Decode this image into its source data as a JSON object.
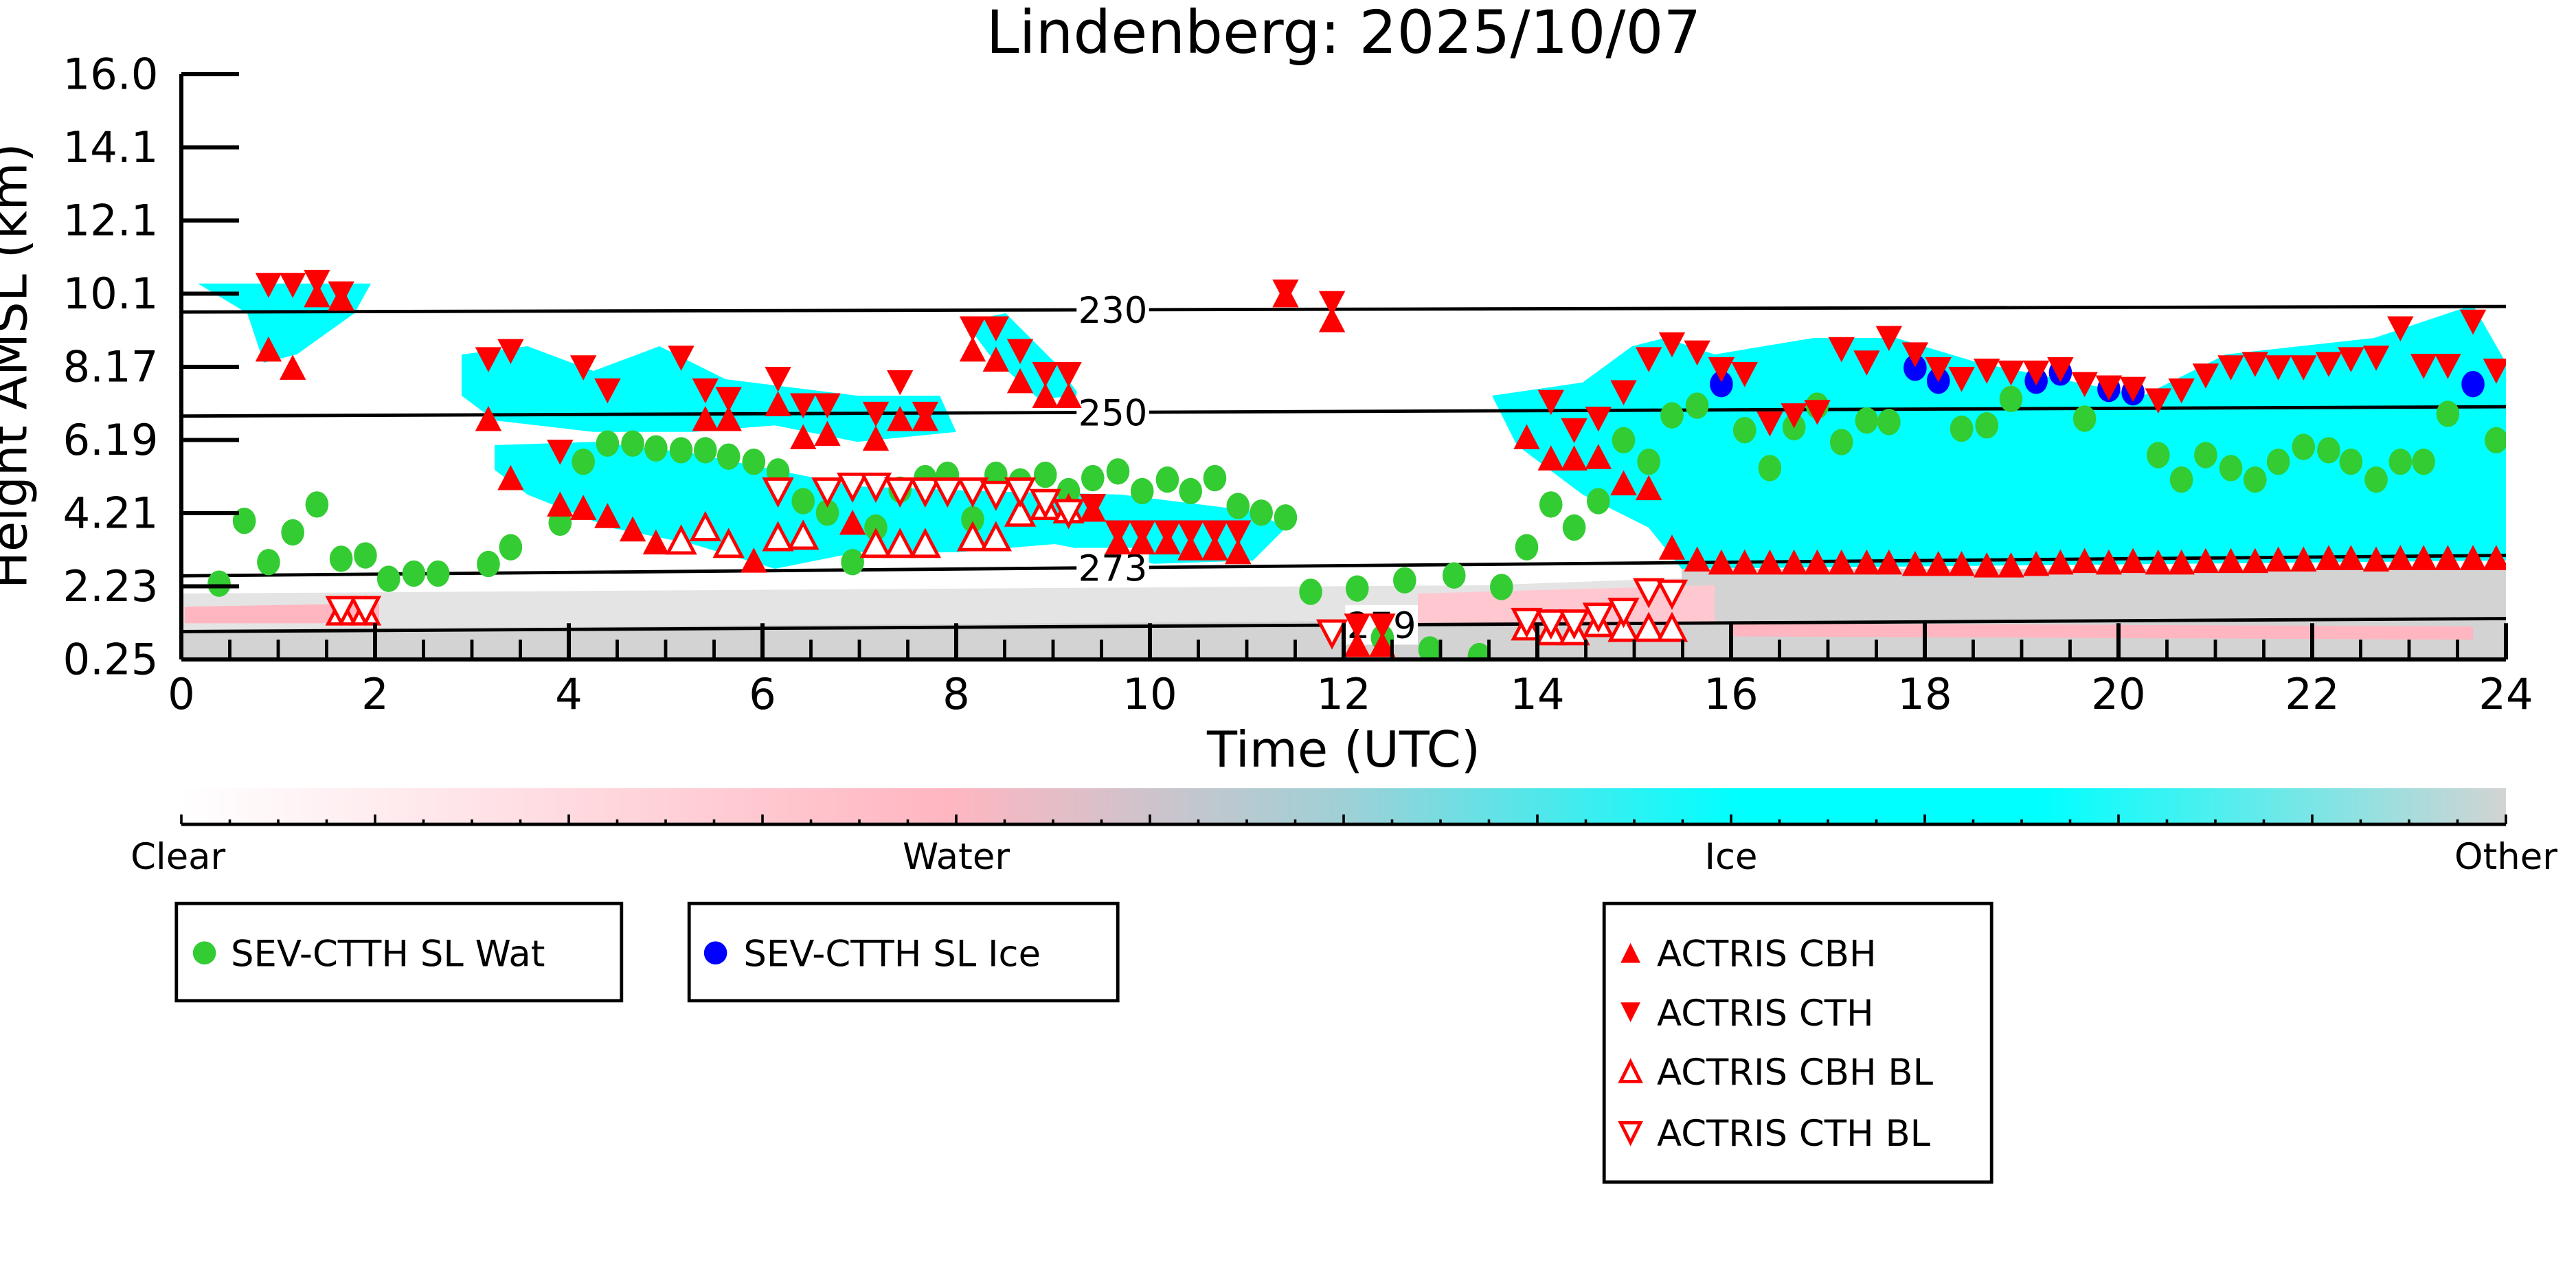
{
  "chart_data": {
    "type": "scatter",
    "title": "Lindenberg: 2025/10/07",
    "xlabel": "Time (UTC)",
    "ylabel": "Height AMSL (km)",
    "xlim": [
      0,
      24
    ],
    "ylim": [
      0.25,
      16.0
    ],
    "xticks": [
      "0",
      "2",
      "4",
      "6",
      "8",
      "10",
      "12",
      "14",
      "16",
      "18",
      "20",
      "22",
      "24"
    ],
    "yticks": [
      "0.25",
      "2.23",
      "4.21",
      "6.19",
      "8.17",
      "10.1",
      "12.1",
      "14.1",
      "16.0"
    ],
    "isotherms": [
      {
        "label": "230",
        "h_left": 9.6,
        "h_right": 9.75
      },
      {
        "label": "250",
        "h_left": 6.8,
        "h_right": 7.05
      },
      {
        "label": "273",
        "h_left": 2.5,
        "h_right": 3.05
      },
      {
        "label": "279",
        "h_left": 1.0,
        "h_right": 1.35
      }
    ],
    "colorbar": {
      "labels": [
        "Clear",
        "Water",
        "Ice",
        "Other"
      ],
      "colors": [
        "#ffffff",
        "#ffb6c1",
        "#00ffff",
        "#d3d3d3"
      ]
    },
    "series": [
      {
        "name": "SEV-CTTH SL Wat",
        "marker": "circle",
        "color": "#33cc33",
        "points": [
          [
            0.39,
            2.29
          ],
          [
            0.65,
            3.98
          ],
          [
            0.9,
            2.87
          ],
          [
            1.15,
            3.67
          ],
          [
            1.4,
            4.42
          ],
          [
            1.65,
            2.96
          ],
          [
            1.9,
            3.05
          ],
          [
            2.14,
            2.42
          ],
          [
            2.4,
            2.56
          ],
          [
            2.65,
            2.56
          ],
          [
            3.17,
            2.82
          ],
          [
            3.4,
            3.27
          ],
          [
            3.91,
            3.93
          ],
          [
            4.15,
            5.57
          ],
          [
            4.4,
            6.06
          ],
          [
            4.66,
            6.06
          ],
          [
            4.9,
            5.93
          ],
          [
            5.16,
            5.88
          ],
          [
            5.41,
            5.88
          ],
          [
            5.65,
            5.71
          ],
          [
            5.91,
            5.57
          ],
          [
            6.16,
            5.31
          ],
          [
            6.42,
            4.51
          ],
          [
            6.67,
            4.2
          ],
          [
            6.93,
            2.87
          ],
          [
            7.17,
            3.8
          ],
          [
            7.42,
            4.82
          ],
          [
            7.68,
            5.13
          ],
          [
            7.91,
            5.22
          ],
          [
            8.17,
            4.02
          ],
          [
            8.41,
            5.22
          ],
          [
            8.66,
            5.04
          ],
          [
            8.92,
            5.22
          ],
          [
            9.16,
            4.78
          ],
          [
            9.41,
            5.13
          ],
          [
            9.67,
            5.31
          ],
          [
            9.92,
            4.78
          ],
          [
            10.18,
            5.09
          ],
          [
            10.42,
            4.78
          ],
          [
            10.67,
            5.13
          ],
          [
            10.91,
            4.38
          ],
          [
            11.15,
            4.2
          ],
          [
            11.4,
            4.07
          ],
          [
            11.66,
            2.07
          ],
          [
            12.14,
            2.16
          ],
          [
            12.4,
            0.83
          ],
          [
            12.63,
            2.38
          ],
          [
            12.89,
            0.52
          ],
          [
            13.14,
            2.51
          ],
          [
            13.4,
            0.34
          ],
          [
            13.63,
            2.2
          ],
          [
            13.89,
            3.27
          ],
          [
            14.14,
            4.42
          ],
          [
            14.38,
            3.8
          ],
          [
            14.63,
            4.51
          ],
          [
            14.89,
            6.15
          ],
          [
            15.15,
            5.57
          ],
          [
            15.39,
            6.82
          ],
          [
            15.65,
            7.08
          ],
          [
            16.14,
            6.42
          ],
          [
            16.4,
            5.4
          ],
          [
            16.65,
            6.5
          ],
          [
            16.89,
            7.08
          ],
          [
            17.14,
            6.1
          ],
          [
            17.4,
            6.68
          ],
          [
            17.63,
            6.64
          ],
          [
            18.38,
            6.46
          ],
          [
            18.64,
            6.55
          ],
          [
            18.89,
            7.26
          ],
          [
            19.65,
            6.73
          ],
          [
            20.41,
            5.75
          ],
          [
            20.65,
            5.09
          ],
          [
            20.9,
            5.75
          ],
          [
            21.16,
            5.4
          ],
          [
            21.41,
            5.09
          ],
          [
            21.65,
            5.57
          ],
          [
            21.91,
            5.97
          ],
          [
            22.17,
            5.88
          ],
          [
            22.4,
            5.57
          ],
          [
            22.66,
            5.09
          ],
          [
            22.91,
            5.57
          ],
          [
            23.15,
            5.57
          ],
          [
            23.4,
            6.86
          ],
          [
            23.9,
            6.15
          ]
        ]
      },
      {
        "name": "SEV-CTTH SL Ice",
        "marker": "circle",
        "color": "#0000ff",
        "points": [
          [
            15.9,
            7.66
          ],
          [
            17.9,
            8.1
          ],
          [
            18.14,
            7.75
          ],
          [
            19.15,
            7.75
          ],
          [
            19.4,
            7.97
          ],
          [
            19.9,
            7.53
          ],
          [
            20.15,
            7.44
          ],
          [
            23.66,
            7.66
          ]
        ]
      },
      {
        "name": "ACTRIS CBH",
        "marker": "triangle-up",
        "color": "#ff0000",
        "points": [
          [
            0.9,
            8.55
          ],
          [
            1.15,
            8.06
          ],
          [
            1.4,
            10.01
          ],
          [
            1.65,
            9.92
          ],
          [
            3.17,
            6.68
          ],
          [
            3.4,
            5.09
          ],
          [
            3.91,
            4.38
          ],
          [
            4.15,
            4.29
          ],
          [
            4.4,
            4.07
          ],
          [
            4.66,
            3.71
          ],
          [
            4.9,
            3.36
          ],
          [
            5.41,
            6.68
          ],
          [
            5.65,
            6.68
          ],
          [
            5.91,
            2.87
          ],
          [
            6.16,
            7.08
          ],
          [
            6.42,
            6.19
          ],
          [
            6.67,
            6.28
          ],
          [
            6.93,
            3.89
          ],
          [
            7.17,
            6.15
          ],
          [
            7.42,
            6.68
          ],
          [
            7.68,
            6.68
          ],
          [
            8.17,
            8.55
          ],
          [
            8.41,
            8.28
          ],
          [
            8.66,
            7.7
          ],
          [
            8.92,
            7.3
          ],
          [
            9.16,
            7.3
          ],
          [
            9.41,
            4.24
          ],
          [
            9.67,
            3.36
          ],
          [
            9.92,
            3.36
          ],
          [
            10.18,
            3.36
          ],
          [
            10.42,
            3.2
          ],
          [
            10.67,
            3.2
          ],
          [
            10.91,
            3.1
          ],
          [
            11.4,
            10.01
          ],
          [
            11.88,
            9.34
          ],
          [
            12.14,
            0.6
          ],
          [
            12.4,
            0.6
          ],
          [
            13.89,
            6.19
          ],
          [
            14.14,
            5.62
          ],
          [
            14.38,
            5.62
          ],
          [
            14.63,
            5.66
          ],
          [
            14.89,
            4.95
          ],
          [
            15.15,
            4.82
          ],
          [
            15.39,
            3.22
          ],
          [
            15.65,
            2.9
          ],
          [
            15.9,
            2.82
          ],
          [
            16.14,
            2.82
          ],
          [
            16.4,
            2.82
          ],
          [
            16.65,
            2.82
          ],
          [
            16.89,
            2.82
          ],
          [
            17.14,
            2.82
          ],
          [
            17.4,
            2.82
          ],
          [
            17.63,
            2.82
          ],
          [
            17.9,
            2.78
          ],
          [
            18.14,
            2.78
          ],
          [
            18.38,
            2.78
          ],
          [
            18.64,
            2.74
          ],
          [
            18.89,
            2.74
          ],
          [
            19.15,
            2.78
          ],
          [
            19.4,
            2.82
          ],
          [
            19.65,
            2.86
          ],
          [
            19.9,
            2.82
          ],
          [
            20.15,
            2.86
          ],
          [
            20.41,
            2.82
          ],
          [
            20.65,
            2.82
          ],
          [
            20.9,
            2.86
          ],
          [
            21.16,
            2.86
          ],
          [
            21.41,
            2.86
          ],
          [
            21.65,
            2.9
          ],
          [
            21.91,
            2.9
          ],
          [
            22.17,
            2.94
          ],
          [
            22.4,
            2.94
          ],
          [
            22.66,
            2.9
          ],
          [
            22.91,
            2.94
          ],
          [
            23.15,
            2.94
          ],
          [
            23.4,
            2.94
          ],
          [
            23.66,
            2.94
          ],
          [
            23.9,
            2.94
          ]
        ]
      },
      {
        "name": "ACTRIS CTH",
        "marker": "triangle-down",
        "color": "#ff0000",
        "points": [
          [
            0.9,
            10.37
          ],
          [
            1.15,
            10.37
          ],
          [
            1.4,
            10.45
          ],
          [
            1.65,
            10.14
          ],
          [
            3.17,
            8.37
          ],
          [
            3.4,
            8.59
          ],
          [
            3.91,
            5.88
          ],
          [
            4.15,
            8.15
          ],
          [
            4.4,
            7.53
          ],
          [
            5.16,
            8.41
          ],
          [
            5.41,
            7.53
          ],
          [
            5.65,
            7.3
          ],
          [
            6.16,
            7.84
          ],
          [
            6.42,
            7.13
          ],
          [
            6.67,
            7.13
          ],
          [
            7.17,
            6.9
          ],
          [
            7.42,
            7.75
          ],
          [
            7.68,
            6.9
          ],
          [
            8.17,
            9.2
          ],
          [
            8.41,
            9.2
          ],
          [
            8.66,
            8.59
          ],
          [
            8.92,
            7.97
          ],
          [
            9.16,
            7.97
          ],
          [
            9.41,
            4.42
          ],
          [
            9.67,
            3.71
          ],
          [
            9.92,
            3.71
          ],
          [
            10.18,
            3.71
          ],
          [
            10.42,
            3.71
          ],
          [
            10.67,
            3.71
          ],
          [
            10.91,
            3.71
          ],
          [
            11.4,
            10.19
          ],
          [
            11.88,
            9.88
          ],
          [
            12.14,
            1.2
          ],
          [
            12.4,
            1.2
          ],
          [
            14.14,
            7.22
          ],
          [
            14.38,
            6.46
          ],
          [
            14.63,
            6.77
          ],
          [
            14.89,
            7.48
          ],
          [
            15.15,
            8.37
          ],
          [
            15.39,
            8.77
          ],
          [
            15.65,
            8.55
          ],
          [
            15.9,
            8.1
          ],
          [
            16.14,
            7.97
          ],
          [
            16.4,
            6.64
          ],
          [
            16.65,
            6.86
          ],
          [
            16.89,
            6.95
          ],
          [
            17.14,
            8.64
          ],
          [
            17.4,
            8.28
          ],
          [
            17.63,
            8.94
          ],
          [
            17.9,
            8.5
          ],
          [
            18.14,
            8.1
          ],
          [
            18.38,
            7.84
          ],
          [
            18.64,
            8.06
          ],
          [
            18.89,
            8.01
          ],
          [
            19.15,
            8.01
          ],
          [
            19.4,
            8.1
          ],
          [
            19.65,
            7.7
          ],
          [
            19.9,
            7.61
          ],
          [
            20.15,
            7.57
          ],
          [
            20.41,
            7.26
          ],
          [
            20.65,
            7.53
          ],
          [
            20.9,
            7.93
          ],
          [
            21.16,
            8.15
          ],
          [
            21.41,
            8.24
          ],
          [
            21.65,
            8.15
          ],
          [
            21.91,
            8.15
          ],
          [
            22.17,
            8.24
          ],
          [
            22.4,
            8.37
          ],
          [
            22.66,
            8.41
          ],
          [
            22.91,
            9.2
          ],
          [
            23.15,
            8.19
          ],
          [
            23.4,
            8.19
          ],
          [
            23.66,
            9.38
          ],
          [
            23.9,
            8.06
          ]
        ]
      },
      {
        "name": "ACTRIS CBH BL",
        "marker": "triangle-up-open",
        "color": "#ff0000",
        "points": [
          [
            1.65,
            1.49
          ],
          [
            1.9,
            1.49
          ],
          [
            5.16,
            3.4
          ],
          [
            5.41,
            3.76
          ],
          [
            5.65,
            3.31
          ],
          [
            6.16,
            3.49
          ],
          [
            6.42,
            3.53
          ],
          [
            7.17,
            3.31
          ],
          [
            7.42,
            3.31
          ],
          [
            7.68,
            3.31
          ],
          [
            8.17,
            3.49
          ],
          [
            8.41,
            3.49
          ],
          [
            8.66,
            4.15
          ],
          [
            8.92,
            4.33
          ],
          [
            9.16,
            4.24
          ],
          [
            13.89,
            1.09
          ],
          [
            14.14,
            0.96
          ],
          [
            14.38,
            0.96
          ],
          [
            14.63,
            1.18
          ],
          [
            14.89,
            1.05
          ],
          [
            15.15,
            1.05
          ],
          [
            15.39,
            1.05
          ]
        ]
      },
      {
        "name": "ACTRIS CTH BL",
        "marker": "triangle-down-open",
        "color": "#ff0000",
        "points": [
          [
            1.65,
            1.63
          ],
          [
            1.9,
            1.63
          ],
          [
            6.16,
            4.82
          ],
          [
            6.67,
            4.82
          ],
          [
            6.93,
            4.95
          ],
          [
            7.17,
            4.95
          ],
          [
            7.42,
            4.82
          ],
          [
            7.68,
            4.82
          ],
          [
            7.91,
            4.82
          ],
          [
            8.17,
            4.82
          ],
          [
            8.41,
            4.73
          ],
          [
            8.66,
            4.82
          ],
          [
            8.92,
            4.51
          ],
          [
            9.16,
            4.24
          ],
          [
            11.88,
            1.0
          ],
          [
            13.89,
            1.31
          ],
          [
            14.14,
            1.27
          ],
          [
            14.38,
            1.27
          ],
          [
            14.63,
            1.45
          ],
          [
            14.89,
            1.58
          ],
          [
            15.15,
            2.11
          ],
          [
            15.39,
            2.07
          ]
        ]
      }
    ],
    "legends": [
      {
        "entries": [
          "SEV-CTTH SL Wat"
        ]
      },
      {
        "entries": [
          "SEV-CTTH SL Ice"
        ]
      },
      {
        "entries": [
          "ACTRIS CBH",
          "ACTRIS CTH",
          "ACTRIS CBH BL",
          "ACTRIS CTH BL"
        ]
      }
    ]
  }
}
